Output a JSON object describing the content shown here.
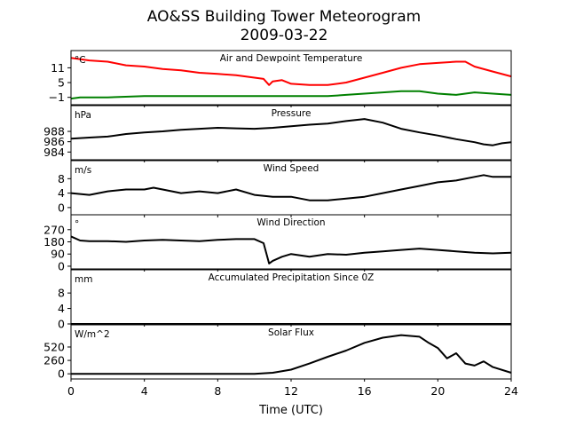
{
  "chart_data": {
    "type": "line",
    "title": "AO&SS Building Tower Meteorogram",
    "subtitle": "2009-03-22",
    "xlabel": "Time (UTC)",
    "xlim": [
      0,
      24
    ],
    "xticks": [
      "0",
      "4",
      "8",
      "12",
      "16",
      "20",
      "24"
    ],
    "panels": [
      {
        "title": "Air and Dewpoint Temperature",
        "unit": "°C",
        "ylim": [
          -4,
          18
        ],
        "yticks": [
          "11",
          "5",
          "−1"
        ],
        "ytick_values": [
          11,
          5,
          -1
        ],
        "series": [
          {
            "color": "#ff0000",
            "x": [
              0,
              1,
              2,
              3,
              4,
              5,
              6,
              7,
              8,
              9,
              10,
              10.5,
              10.8,
              11,
              11.5,
              12,
              13,
              14,
              15,
              16,
              17,
              18,
              19,
              20,
              21,
              21.5,
              22,
              23,
              24
            ],
            "y": [
              15,
              14,
              13.5,
              12,
              11.5,
              10.5,
              10,
              9,
              8.5,
              8,
              7,
              6.5,
              4,
              5.5,
              6,
              4.5,
              4,
              4,
              5,
              7,
              9,
              11,
              12.5,
              13,
              13.5,
              13.5,
              11.5,
              9.5,
              7.5
            ]
          },
          {
            "color": "#008000",
            "x": [
              0,
              0.5,
              2,
              4,
              6,
              8,
              10,
              12,
              14,
              15,
              16,
              17,
              18,
              19,
              20,
              21,
              22,
              23,
              24
            ],
            "y": [
              -1.5,
              -1,
              -1,
              -0.5,
              -0.5,
              -0.5,
              -0.5,
              -0.5,
              -0.5,
              0,
              0.5,
              1,
              1.5,
              1.5,
              0.5,
              0,
              1,
              0.5,
              0
            ]
          }
        ]
      },
      {
        "title": "Pressure",
        "unit": "hPa",
        "ylim": [
          982.5,
          993
        ],
        "yticks": [
          "988",
          "986",
          "984"
        ],
        "ytick_values": [
          988,
          986,
          984
        ],
        "series": [
          {
            "color": "#000000",
            "x": [
              0,
              1,
              2,
              3,
              4,
              5,
              6,
              7,
              8,
              9,
              10,
              11,
              12,
              13,
              14,
              15,
              16,
              17,
              18,
              19,
              20,
              21,
              22,
              22.5,
              23,
              23.5,
              24
            ],
            "y": [
              986.6,
              986.8,
              987,
              987.5,
              987.8,
              988,
              988.3,
              988.5,
              988.7,
              988.6,
              988.5,
              988.7,
              989,
              989.3,
              989.5,
              990,
              990.4,
              989.7,
              988.5,
              987.8,
              987.2,
              986.5,
              985.9,
              985.5,
              985.3,
              985.7,
              985.9
            ]
          }
        ]
      },
      {
        "title": "Wind Speed",
        "unit": "m/s",
        "ylim": [
          -2,
          13
        ],
        "yticks": [
          "8",
          "4",
          "0"
        ],
        "ytick_values": [
          8,
          4,
          0
        ],
        "series": [
          {
            "color": "#000000",
            "x": [
              0,
              1,
              2,
              3,
              4,
              4.5,
              5,
              6,
              7,
              8,
              9,
              10,
              11,
              12,
              13,
              14,
              15,
              16,
              17,
              18,
              19,
              20,
              21,
              22,
              22.5,
              23,
              24
            ],
            "y": [
              4,
              3.5,
              4.5,
              5,
              5,
              5.5,
              5,
              4,
              4.5,
              4,
              5,
              3.5,
              3,
              3,
              2,
              2,
              2.5,
              3,
              4,
              5,
              6,
              7,
              7.5,
              8.5,
              9,
              8.5,
              8.5
            ]
          }
        ]
      },
      {
        "title": "Wind Direction",
        "unit": "°",
        "ylim": [
          -20,
          380
        ],
        "yticks": [
          "270",
          "180",
          "90",
          "0"
        ],
        "ytick_values": [
          270,
          180,
          90,
          0
        ],
        "series": [
          {
            "color": "#000000",
            "x": [
              0,
              0.5,
              1,
              2,
              3,
              4,
              5,
              6,
              7,
              8,
              9,
              10,
              10.5,
              10.8,
              11,
              11.5,
              12,
              12.5,
              13,
              14,
              15,
              16,
              17,
              18,
              19,
              20,
              21,
              22,
              23,
              24
            ],
            "y": [
              220,
              190,
              185,
              185,
              180,
              190,
              195,
              190,
              185,
              195,
              200,
              200,
              170,
              20,
              40,
              70,
              90,
              80,
              70,
              90,
              85,
              100,
              110,
              120,
              130,
              120,
              110,
              100,
              95,
              100
            ]
          }
        ]
      },
      {
        "title": "Accumulated Precipitation Since 0Z",
        "unit": "mm",
        "ylim": [
          0,
          14
        ],
        "yticks": [
          "8",
          "4",
          "0"
        ],
        "ytick_values": [
          8,
          4,
          0
        ],
        "series": [
          {
            "color": "#000000",
            "x": [
              0,
              24
            ],
            "y": [
              0,
              0
            ]
          }
        ]
      },
      {
        "title": "Solar Flux",
        "unit": "W/m^2",
        "ylim": [
          -100,
          950
        ],
        "yticks": [
          "520",
          "260",
          "0"
        ],
        "ytick_values": [
          520,
          260,
          0
        ],
        "series": [
          {
            "color": "#000000",
            "x": [
              0,
              10,
              11,
              12,
              13,
              14,
              15,
              16,
              17,
              18,
              19,
              19.5,
              20,
              20.5,
              21,
              21.5,
              22,
              22.5,
              23,
              24
            ],
            "y": [
              0,
              0,
              20,
              80,
              200,
              330,
              450,
              600,
              700,
              750,
              720,
              600,
              500,
              300,
              400,
              200,
              160,
              240,
              130,
              20
            ]
          }
        ]
      }
    ]
  }
}
